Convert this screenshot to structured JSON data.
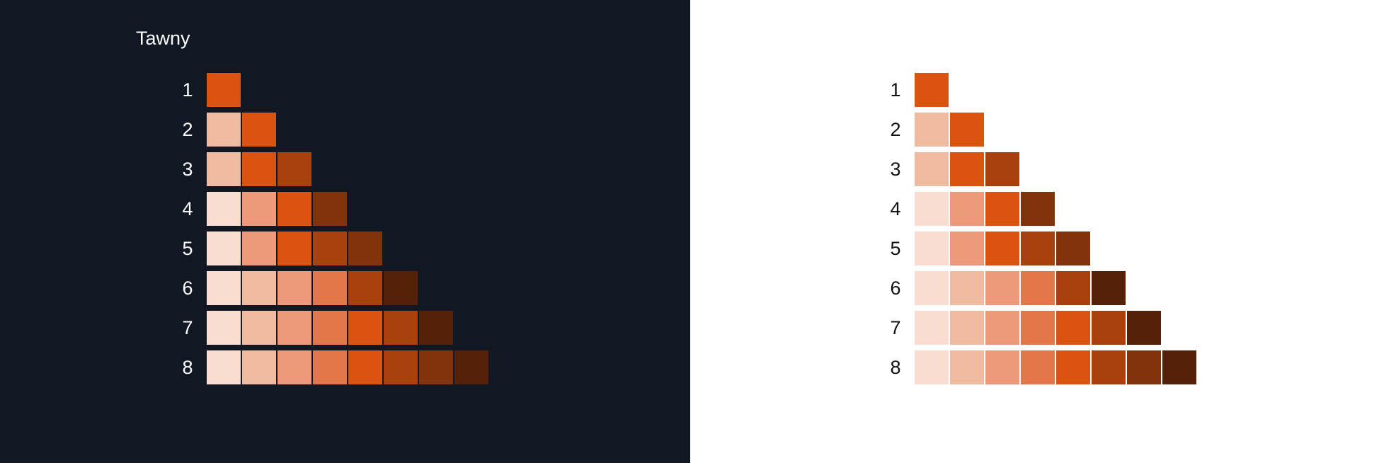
{
  "title": "Tawny",
  "rows": [
    {
      "label": "1",
      "colors": [
        "#db530e"
      ]
    },
    {
      "label": "2",
      "colors": [
        "#f0baa1",
        "#db530e"
      ]
    },
    {
      "label": "3",
      "colors": [
        "#f0baa1",
        "#db530e",
        "#a9400d"
      ]
    },
    {
      "label": "4",
      "colors": [
        "#f8ddd0",
        "#ec9a7a",
        "#db530e",
        "#82330c"
      ]
    },
    {
      "label": "5",
      "colors": [
        "#f8ddd0",
        "#ec9a7a",
        "#db530e",
        "#a9400d",
        "#82330c"
      ]
    },
    {
      "label": "6",
      "colors": [
        "#f8ddd0",
        "#f0baa1",
        "#ec9a7a",
        "#e4774a",
        "#a9400d",
        "#55210b"
      ]
    },
    {
      "label": "7",
      "colors": [
        "#f8ddd0",
        "#f0baa1",
        "#ec9a7a",
        "#e4774a",
        "#db530e",
        "#a9400d",
        "#55210b"
      ]
    },
    {
      "label": "8",
      "colors": [
        "#f8ddd0",
        "#f0baa1",
        "#ec9a7a",
        "#e4774a",
        "#db530e",
        "#a9400d",
        "#82330c",
        "#55210b"
      ]
    }
  ],
  "themes": {
    "dark_background": "#111823",
    "light_background": "#ffffff"
  }
}
